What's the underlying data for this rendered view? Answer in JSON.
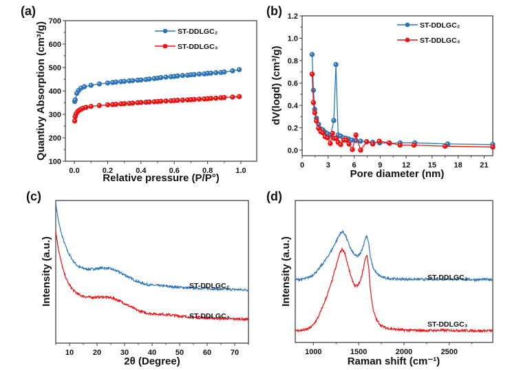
{
  "colors": {
    "series_2": "#2e75b6",
    "series_3": "#ee1111",
    "axis": "#333333"
  },
  "chart_data": [
    {
      "panel": "(a)",
      "type": "line",
      "title": "",
      "xlabel": "Relative pressure (P/P°)",
      "ylabel": "Quantivy Absorption (cm³/g)",
      "xlim": [
        -0.054,
        1.095
      ],
      "ylim": [
        100,
        700
      ],
      "xticks": [
        0.0,
        0.2,
        0.4,
        0.6,
        0.8,
        1.0
      ],
      "xtick_labels": [
        "0.0",
        "0.2",
        "0.4",
        "0.6",
        "0.8",
        "1.0"
      ],
      "yticks": [
        100,
        200,
        300,
        400,
        500,
        600,
        700
      ],
      "ytick_labels": [
        "100",
        "200",
        "300",
        "400",
        "500",
        "600",
        "700"
      ],
      "legend": {
        "position": "top-right",
        "entries": [
          "ST-DDLGC₂",
          "ST-DDLGC₃"
        ]
      },
      "markers": true,
      "series": [
        {
          "name": "ST-DDLGC₂",
          "x": [
            0.002,
            0.005,
            0.015,
            0.025,
            0.04,
            0.06,
            0.1,
            0.15,
            0.2,
            0.23,
            0.25,
            0.28,
            0.3,
            0.33,
            0.35,
            0.38,
            0.4,
            0.43,
            0.45,
            0.48,
            0.5,
            0.52,
            0.55,
            0.58,
            0.6,
            0.62,
            0.65,
            0.68,
            0.7,
            0.72,
            0.75,
            0.78,
            0.8,
            0.82,
            0.85,
            0.88,
            0.9,
            0.95,
            0.99
          ],
          "y": [
            355,
            362,
            390,
            402,
            412,
            418,
            424,
            430,
            434,
            436,
            438,
            440,
            441,
            443,
            444,
            446,
            447,
            449,
            451,
            453,
            455,
            457,
            459,
            461,
            462,
            464,
            466,
            467,
            469,
            470,
            472,
            473,
            475,
            476,
            478,
            479,
            481,
            486,
            491
          ]
        },
        {
          "name": "ST-DDLGC₃",
          "x": [
            0.002,
            0.005,
            0.01,
            0.02,
            0.03,
            0.04,
            0.05,
            0.07,
            0.1,
            0.15,
            0.2,
            0.23,
            0.25,
            0.28,
            0.3,
            0.33,
            0.35,
            0.38,
            0.4,
            0.43,
            0.45,
            0.48,
            0.5,
            0.52,
            0.55,
            0.58,
            0.6,
            0.62,
            0.65,
            0.68,
            0.7,
            0.72,
            0.75,
            0.78,
            0.8,
            0.82,
            0.85,
            0.88,
            0.9,
            0.95,
            0.99
          ],
          "y": [
            272,
            290,
            302,
            312,
            318,
            322,
            326,
            330,
            334,
            338,
            341,
            342,
            343,
            345,
            346,
            347,
            348,
            350,
            351,
            352,
            353,
            354,
            355,
            356,
            357,
            358,
            359,
            360,
            361,
            362,
            363,
            364,
            365,
            366,
            367,
            368,
            369,
            371,
            372,
            374,
            376
          ]
        }
      ]
    },
    {
      "panel": "(b)",
      "type": "line",
      "title": "",
      "xlabel": "Pore diameter (nm)",
      "ylabel": "dV(logd) (cm³/g)",
      "xlim": [
        0,
        22
      ],
      "ylim": [
        -0.05,
        1.2
      ],
      "xticks": [
        0,
        3,
        6,
        9,
        12,
        15,
        18,
        21
      ],
      "xtick_labels": [
        "0",
        "3",
        "6",
        "9",
        "12",
        "15",
        "18",
        "21"
      ],
      "yticks": [
        0.0,
        0.2,
        0.4,
        0.6,
        0.8,
        1.0,
        1.2
      ],
      "ytick_labels": [
        "0.0",
        "0.2",
        "0.4",
        "0.6",
        "0.8",
        "1.0",
        "1.2"
      ],
      "legend": {
        "position": "top-right",
        "entries": [
          "ST-DDLGC₂",
          "ST-DDLGC₃"
        ]
      },
      "markers": true,
      "series": [
        {
          "name": "ST-DDLGC₂",
          "x": [
            1.15,
            1.3,
            1.45,
            1.65,
            1.9,
            2.15,
            2.4,
            2.65,
            2.95,
            3.3,
            3.65,
            3.9,
            4.15,
            4.45,
            4.8,
            5.05,
            5.35,
            5.75,
            6.2,
            6.75,
            7.45,
            8.15,
            8.95,
            10.1,
            11.3,
            13.0,
            16.8,
            22.0
          ],
          "y": [
            0.855,
            0.535,
            0.365,
            0.285,
            0.23,
            0.19,
            0.18,
            0.16,
            0.145,
            0.135,
            0.265,
            0.765,
            0.135,
            0.125,
            0.11,
            0.105,
            0.1,
            0.09,
            0.085,
            0.08,
            0.075,
            0.07,
            0.065,
            0.06,
            0.065,
            0.065,
            0.055,
            0.05
          ]
        },
        {
          "name": "ST-DDLGC₃",
          "x": [
            1.15,
            1.3,
            1.45,
            1.65,
            1.9,
            2.15,
            2.4,
            2.65,
            2.95,
            3.25,
            3.5,
            3.7,
            3.95,
            4.15,
            4.45,
            4.8,
            5.1,
            5.4,
            5.8,
            6.2,
            6.75,
            7.45,
            8.15,
            8.9,
            10.05,
            11.3,
            12.9,
            16.5,
            22.0
          ],
          "y": [
            0.68,
            0.425,
            0.335,
            0.26,
            0.195,
            0.165,
            0.155,
            0.12,
            0.11,
            0.06,
            0.15,
            0.105,
            0.105,
            0.07,
            0.05,
            0.09,
            0.09,
            0.055,
            0.005,
            0.135,
            0.0,
            0.075,
            0.055,
            0.08,
            0.065,
            0.045,
            0.045,
            0.035,
            0.028
          ]
        }
      ]
    },
    {
      "panel": "(c)",
      "type": "line",
      "title": "",
      "xlabel": "2θ (Degree)",
      "ylabel": "Intensity (a.u.)",
      "xlim": [
        5,
        75
      ],
      "ylim": [
        0,
        100
      ],
      "xticks": [
        10,
        20,
        30,
        40,
        50,
        60,
        70
      ],
      "xtick_labels": [
        "10",
        "20",
        "30",
        "40",
        "50",
        "60",
        "70"
      ],
      "yticks": [],
      "legend": {
        "position": "inline-labels",
        "entries": [
          "ST-DDLGC₂",
          "ST-DDLGC₃"
        ]
      },
      "markers": false,
      "series": [
        {
          "name": "ST-DDLGC₂",
          "x": [
            5,
            6,
            7,
            8,
            9,
            10,
            11,
            12,
            13,
            14,
            16,
            18,
            20,
            22,
            24,
            26,
            28,
            30,
            32,
            34,
            36,
            38,
            40,
            45,
            50,
            55,
            60,
            65,
            70,
            75
          ],
          "y": [
            95,
            83,
            75,
            69,
            64,
            60,
            57,
            54.5,
            52.5,
            51.5,
            50.5,
            50.5,
            50.8,
            51.2,
            51,
            50,
            48.5,
            46.5,
            44.5,
            42.5,
            41,
            40,
            39.5,
            38.8,
            38,
            37.5,
            37.2,
            36.8,
            36.5,
            36.3
          ]
        },
        {
          "name": "ST-DDLGC₃",
          "x": [
            5,
            6,
            7,
            8,
            9,
            10,
            11,
            12,
            13,
            14,
            16,
            18,
            20,
            22,
            24,
            26,
            28,
            30,
            32,
            34,
            36,
            38,
            40,
            45,
            50,
            55,
            60,
            65,
            70,
            75
          ],
          "y": [
            76,
            64,
            55,
            48,
            43,
            39.5,
            37,
            35,
            33.5,
            32.5,
            31.5,
            31.2,
            31.3,
            31.5,
            31.2,
            30.5,
            29,
            27,
            25,
            23,
            21.5,
            20.5,
            20,
            19.5,
            18.5,
            17.5,
            17.2,
            16.8,
            16.5,
            16.3
          ]
        }
      ],
      "annotations": [
        "ST-DDLGC₂",
        "ST-DDLGC₃"
      ]
    },
    {
      "panel": "(d)",
      "type": "line",
      "title": "",
      "xlabel": "Raman shift (cm⁻¹)",
      "ylabel": "Intensity (a.u.)",
      "xlim": [
        800,
        2980
      ],
      "ylim": [
        0,
        100
      ],
      "xticks": [
        1000,
        1500,
        2000,
        2500
      ],
      "xtick_labels": [
        "1000",
        "1500",
        "2000",
        "2500"
      ],
      "yticks": [],
      "legend": {
        "position": "inline-labels",
        "entries": [
          "ST-DDLGC₂",
          "ST-DDLGC₃"
        ]
      },
      "markers": false,
      "series": [
        {
          "name": "ST-DDLGC₂",
          "x": [
            820,
            900,
            950,
            1000,
            1050,
            1100,
            1150,
            1200,
            1250,
            1290,
            1320,
            1350,
            1380,
            1420,
            1460,
            1490,
            1520,
            1550,
            1575,
            1590,
            1610,
            1630,
            1660,
            1700,
            1750,
            1800,
            1900,
            2000,
            2200,
            2500,
            2800,
            2980
          ],
          "y": [
            43,
            43.5,
            44.5,
            46.5,
            49.5,
            53.5,
            58,
            63,
            69,
            74,
            76,
            74,
            69,
            63,
            59.5,
            59,
            61,
            66,
            71.5,
            73.5,
            68,
            58,
            51,
            47,
            45,
            44,
            43.5,
            43.3,
            43.2,
            43.3,
            43,
            43.2
          ]
        },
        {
          "name": "ST-DDLGC₃",
          "x": [
            820,
            900,
            950,
            1000,
            1050,
            1100,
            1150,
            1200,
            1250,
            1290,
            1320,
            1350,
            1380,
            1420,
            1460,
            1490,
            1520,
            1550,
            1575,
            1590,
            1610,
            1630,
            1660,
            1700,
            1750,
            1800,
            1900,
            2000,
            2200,
            2500,
            2800,
            2980
          ],
          "y": [
            8,
            8.5,
            9.5,
            12,
            17,
            24,
            32,
            41,
            52,
            61,
            64,
            61,
            53,
            44,
            38.5,
            39,
            42,
            50,
            58,
            60,
            52,
            36,
            22,
            15,
            11.5,
            10,
            9,
            8.5,
            8.2,
            8.3,
            8,
            8.1
          ]
        }
      ],
      "annotations": [
        "ST-DDLGC₂",
        "ST-DDLGC₃"
      ]
    }
  ]
}
